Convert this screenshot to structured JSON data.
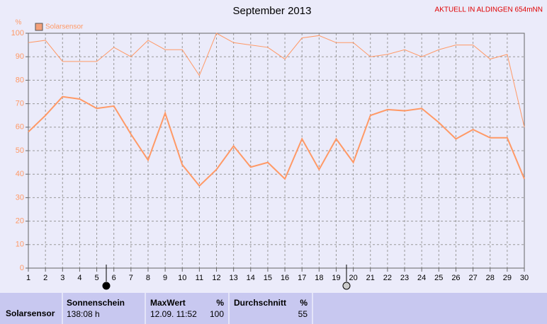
{
  "chart_data": {
    "type": "line",
    "title": "September 2013",
    "subtitle": "AKTUELL IN ALDINGEN 654mNN",
    "y_label": "%",
    "x": [
      1,
      2,
      3,
      4,
      5,
      6,
      7,
      8,
      9,
      10,
      11,
      12,
      13,
      14,
      15,
      16,
      17,
      18,
      19,
      20,
      21,
      22,
      23,
      24,
      25,
      26,
      27,
      28,
      29,
      30
    ],
    "series": [
      {
        "name": "Solarsensor",
        "color": "#ff9966",
        "values": [
          58,
          65,
          73,
          72,
          68,
          69,
          57,
          46,
          66,
          44,
          35,
          42,
          52,
          43,
          45,
          38,
          55,
          42,
          55,
          45,
          65,
          67.5,
          67,
          68,
          62,
          55,
          59,
          55.5,
          55.5,
          38
        ]
      },
      {
        "color": "#ff9966",
        "values": [
          96,
          97,
          88,
          88,
          88,
          94,
          90,
          97,
          93,
          93,
          82,
          100,
          96,
          95,
          94,
          89,
          98,
          99,
          96,
          96,
          90,
          91,
          93,
          90,
          93,
          95,
          95,
          89,
          91,
          60
        ]
      }
    ],
    "xlim": [
      1,
      30
    ],
    "xticks": [
      1,
      2,
      3,
      4,
      5,
      6,
      7,
      8,
      9,
      10,
      11,
      12,
      13,
      14,
      15,
      16,
      17,
      18,
      19,
      20,
      21,
      22,
      23,
      24,
      25,
      26,
      27,
      28,
      29,
      30
    ],
    "ylim": [
      0,
      100
    ],
    "yticks": [
      0,
      10,
      20,
      30,
      40,
      50,
      60,
      70,
      80,
      90,
      100
    ],
    "grid": true
  },
  "summary": {
    "row_label": "Solarsensor",
    "sunshine": {
      "title": "Sonnenschein",
      "value": "138:08 h"
    },
    "max": {
      "title": "MaxWert",
      "unit": "%",
      "time": "12.09. 11:52",
      "value": "100"
    },
    "avg": {
      "title": "Durchschnitt",
      "unit": "%",
      "value": "55"
    }
  }
}
